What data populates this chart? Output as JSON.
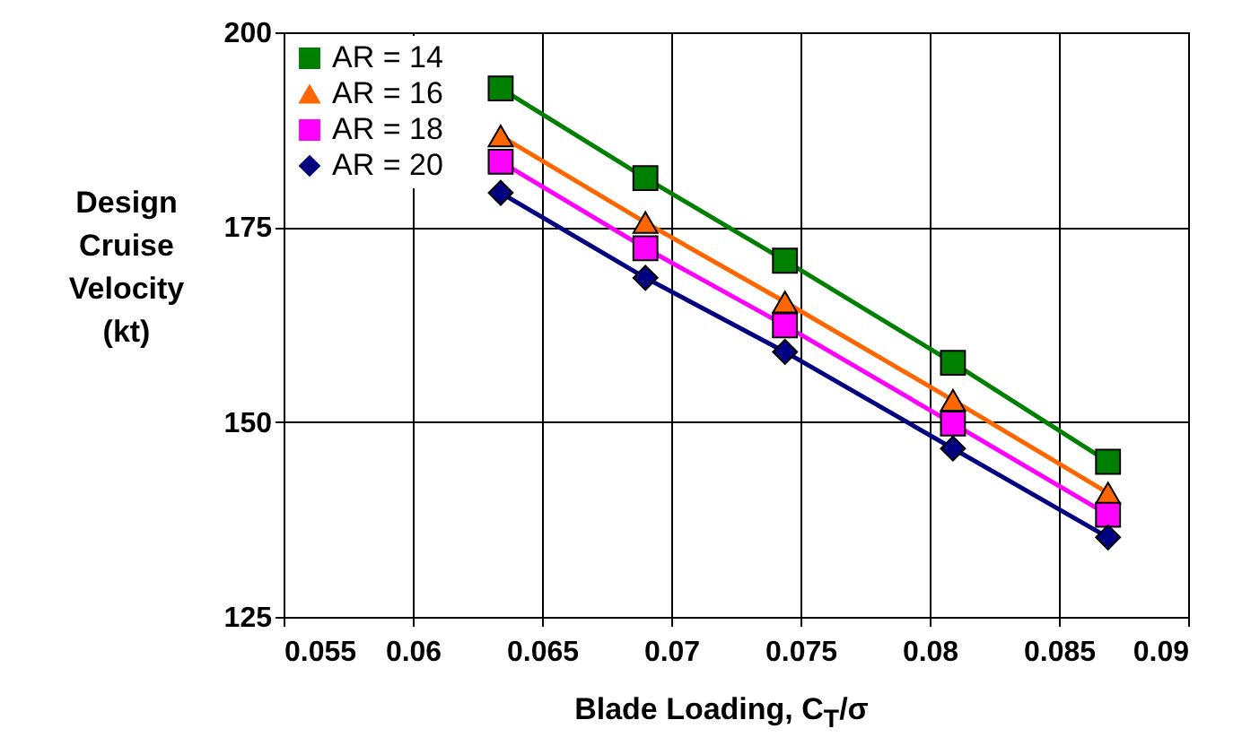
{
  "chart_data": {
    "type": "line",
    "xlabel": "Blade Loading, C$_{T}$/σ",
    "ylabel": "Design\nCruise\nVelocity\n(kt)",
    "x": [
      0.0634,
      0.069,
      0.0744,
      0.0809,
      0.0869
    ],
    "xlim": [
      0.055,
      0.09
    ],
    "xticks": [
      0.055,
      0.06,
      0.065,
      0.07,
      0.075,
      0.08,
      0.085,
      0.09
    ],
    "ylim": [
      125,
      200
    ],
    "yticks": [
      125,
      150,
      175,
      200
    ],
    "grid": true,
    "legend": "top left",
    "series": [
      {
        "name": "AR = 14",
        "color": "#008000",
        "marker": "square",
        "values": [
          192.8,
          181.3,
          170.7,
          157.6,
          144.9
        ]
      },
      {
        "name": "AR = 16",
        "color": "#ff6600",
        "marker": "triangle",
        "values": [
          186.7,
          175.6,
          165.4,
          152.8,
          140.9
        ]
      },
      {
        "name": "AR = 18",
        "color": "#ff00ff",
        "marker": "square",
        "values": [
          183.4,
          172.3,
          162.4,
          149.8,
          138.1
        ]
      },
      {
        "name": "AR = 20",
        "color": "#000080",
        "marker": "diamond",
        "values": [
          179.4,
          168.5,
          159.0,
          146.6,
          135.2
        ]
      }
    ]
  }
}
